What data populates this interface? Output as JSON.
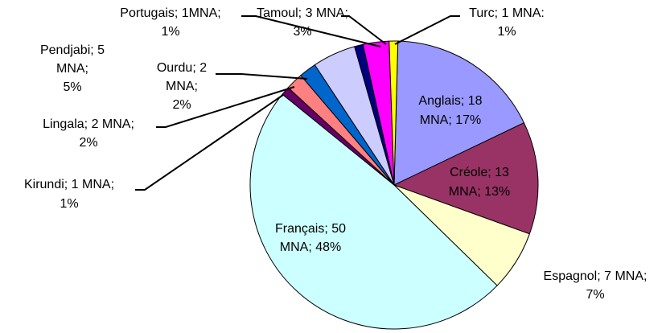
{
  "chart_data": {
    "type": "pie",
    "values": [
      18,
      13,
      7,
      50,
      1,
      2,
      2,
      5,
      1,
      3,
      1
    ],
    "labels": [
      [
        "Anglais; 18",
        "MNA; 17%"
      ],
      [
        "Créole; 13",
        "MNA; 13%"
      ],
      [
        "Espagnol; 7 MNA;",
        "7%"
      ],
      [
        "Français; 50",
        "MNA; 48%"
      ],
      [
        "Kirundi; 1 MNA;",
        "1%"
      ],
      [
        "Lingala; 2 MNA;",
        "2%"
      ],
      [
        "Ourdu; 2",
        "MNA;",
        "2%"
      ],
      [
        "Pendjabi; 5",
        "MNA;",
        "5%"
      ],
      [
        "Portugais; 1MNA;",
        "1%"
      ],
      [
        "Tamoul; 3 MNA;",
        "3%"
      ],
      [
        "Turc; 1 MNA:",
        "1%"
      ]
    ],
    "colors": [
      "#9999ff",
      "#993366",
      "#ffffcc",
      "#ccffff",
      "#660066",
      "#ff8080",
      "#0066cc",
      "#ccccff",
      "#000080",
      "#ff00ff",
      "#ffff00"
    ]
  }
}
